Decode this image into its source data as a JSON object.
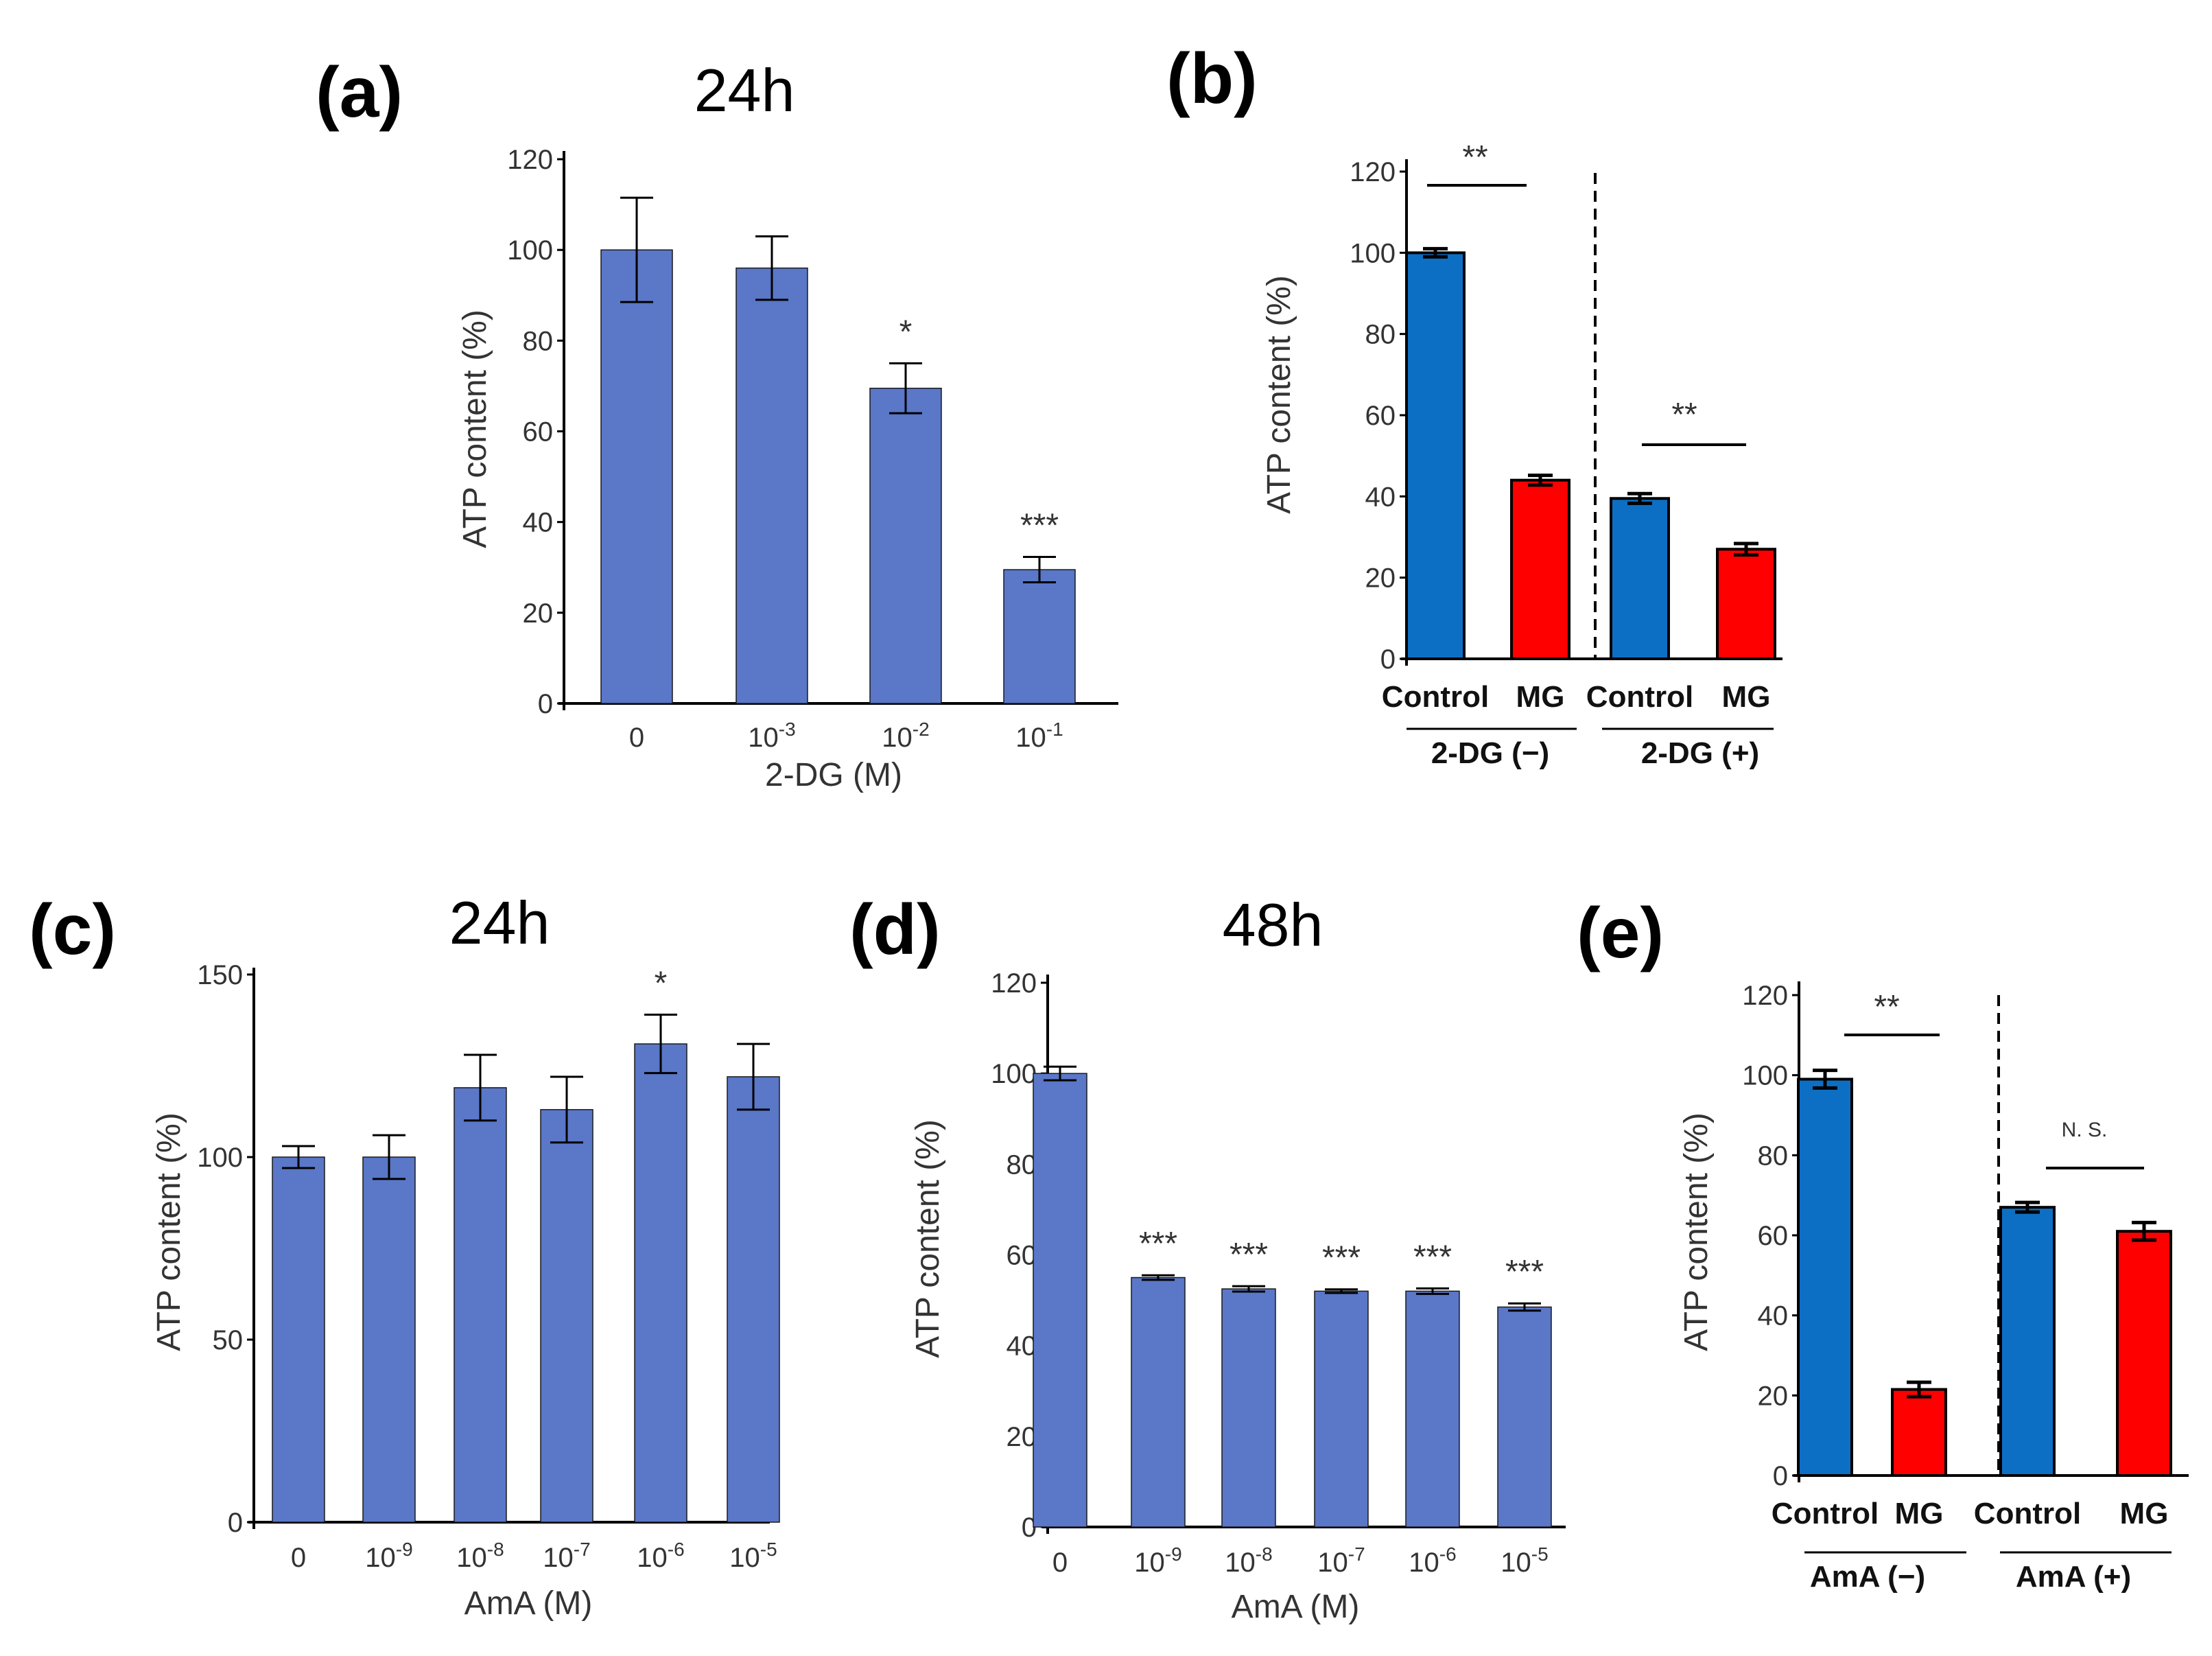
{
  "colors": {
    "bar_blue": "#5A77C8",
    "bar_blue_dark": "#0D6FC4",
    "bar_red": "#FF0000",
    "axis": "#000000",
    "text": "#333333"
  },
  "chart_data": [
    {
      "id": "a",
      "panel_label": "(a)",
      "title": "24h",
      "type": "bar",
      "categories": [
        "0",
        "10-3",
        "10-2",
        "10-1"
      ],
      "category_labels": [
        {
          "base": "0",
          "sup": ""
        },
        {
          "base": "10",
          "sup": "-3"
        },
        {
          "base": "10",
          "sup": "-2"
        },
        {
          "base": "10",
          "sup": "-1"
        }
      ],
      "values": [
        100,
        96,
        69.5,
        29.5
      ],
      "errors": [
        11.5,
        7,
        5.5,
        2.8
      ],
      "significance": [
        "",
        "",
        "*",
        "***"
      ],
      "xlabel": "2-DG (M)",
      "ylabel": "ATP content (%)",
      "ylim": [
        0,
        120
      ],
      "yticks": [
        0,
        20,
        40,
        60,
        80,
        100,
        120
      ]
    },
    {
      "id": "b",
      "panel_label": "(b)",
      "title": "",
      "type": "bar",
      "categories": [
        "Control",
        "MG",
        "Control",
        "MG"
      ],
      "values": [
        100,
        44,
        39.5,
        27
      ],
      "errors": [
        1,
        1.2,
        1.2,
        1.4
      ],
      "groups": [
        "2-DG (−)",
        "2-DG (+)"
      ],
      "comparisons": [
        "**",
        "**"
      ],
      "ylabel": "ATP content (%)",
      "ylim": [
        0,
        120
      ],
      "yticks": [
        0,
        20,
        40,
        60,
        80,
        100,
        120
      ]
    },
    {
      "id": "c",
      "panel_label": "(c)",
      "title": "24h",
      "type": "bar",
      "categories": [
        "0",
        "10-9",
        "10-8",
        "10-7",
        "10-6",
        "10-5"
      ],
      "category_labels": [
        {
          "base": "0",
          "sup": ""
        },
        {
          "base": "10",
          "sup": "-9"
        },
        {
          "base": "10",
          "sup": "-8"
        },
        {
          "base": "10",
          "sup": "-7"
        },
        {
          "base": "10",
          "sup": "-6"
        },
        {
          "base": "10",
          "sup": "-5"
        }
      ],
      "values": [
        100,
        100,
        119,
        113,
        131,
        122
      ],
      "errors": [
        3,
        6,
        9,
        9,
        8,
        9
      ],
      "significance": [
        "",
        "",
        "",
        "",
        "*",
        ""
      ],
      "xlabel": "AmA (M)",
      "ylabel": "ATP content (%)",
      "ylim": [
        0,
        150
      ],
      "yticks": [
        0,
        50,
        100,
        150
      ]
    },
    {
      "id": "d",
      "panel_label": "(d)",
      "title": "48h",
      "type": "bar",
      "categories": [
        "0",
        "10-9",
        "10-8",
        "10-7",
        "10-6",
        "10-5"
      ],
      "category_labels": [
        {
          "base": "0",
          "sup": ""
        },
        {
          "base": "10",
          "sup": "-9"
        },
        {
          "base": "10",
          "sup": "-8"
        },
        {
          "base": "10",
          "sup": "-7"
        },
        {
          "base": "10",
          "sup": "-6"
        },
        {
          "base": "10",
          "sup": "-5"
        }
      ],
      "values": [
        100,
        55,
        52.5,
        52,
        52,
        48.5
      ],
      "errors": [
        1.5,
        0.5,
        0.6,
        0.4,
        0.6,
        0.8
      ],
      "significance": [
        "",
        "***",
        "***",
        "***",
        "***",
        "***"
      ],
      "xlabel": "AmA (M)",
      "ylabel": "ATP content (%)",
      "ylim": [
        0,
        120
      ],
      "yticks": [
        0,
        20,
        40,
        60,
        80,
        100,
        120
      ]
    },
    {
      "id": "e",
      "panel_label": "(e)",
      "title": "",
      "type": "bar",
      "categories": [
        "Control",
        "MG",
        "Control",
        "MG"
      ],
      "values": [
        99,
        21.5,
        67,
        61
      ],
      "errors": [
        2.2,
        1.8,
        1.2,
        2.2
      ],
      "groups": [
        "AmA  (−)",
        "AmA  (+)"
      ],
      "comparisons": [
        "**",
        "N. S."
      ],
      "ylabel": "ATP content (%)",
      "ylim": [
        0,
        120
      ],
      "yticks": [
        0,
        20,
        40,
        60,
        80,
        100,
        120
      ]
    }
  ]
}
